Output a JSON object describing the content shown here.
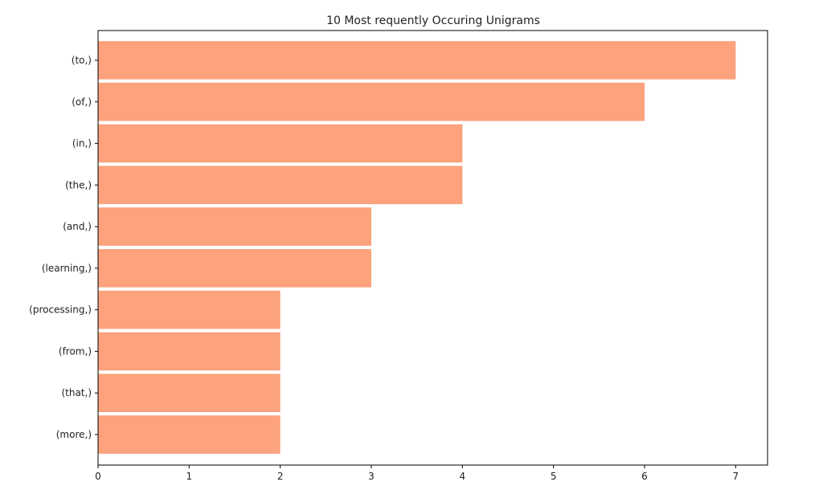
{
  "chart_data": {
    "type": "bar",
    "orientation": "horizontal",
    "title": "10 Most requently Occuring Unigrams",
    "xlabel": "",
    "ylabel": "",
    "categories": [
      "(to,)",
      "(of,)",
      "(in,)",
      "(the,)",
      "(and,)",
      "(learning,)",
      "(processing,)",
      "(from,)",
      "(that,)",
      "(more,)"
    ],
    "values": [
      7,
      6,
      4,
      4,
      3,
      3,
      2,
      2,
      2,
      2
    ],
    "xlim": [
      0,
      7.35
    ],
    "xticks": [
      0,
      1,
      2,
      3,
      4,
      5,
      6,
      7
    ],
    "bar_color": "#fca27c",
    "grid": false,
    "legend": "none"
  }
}
